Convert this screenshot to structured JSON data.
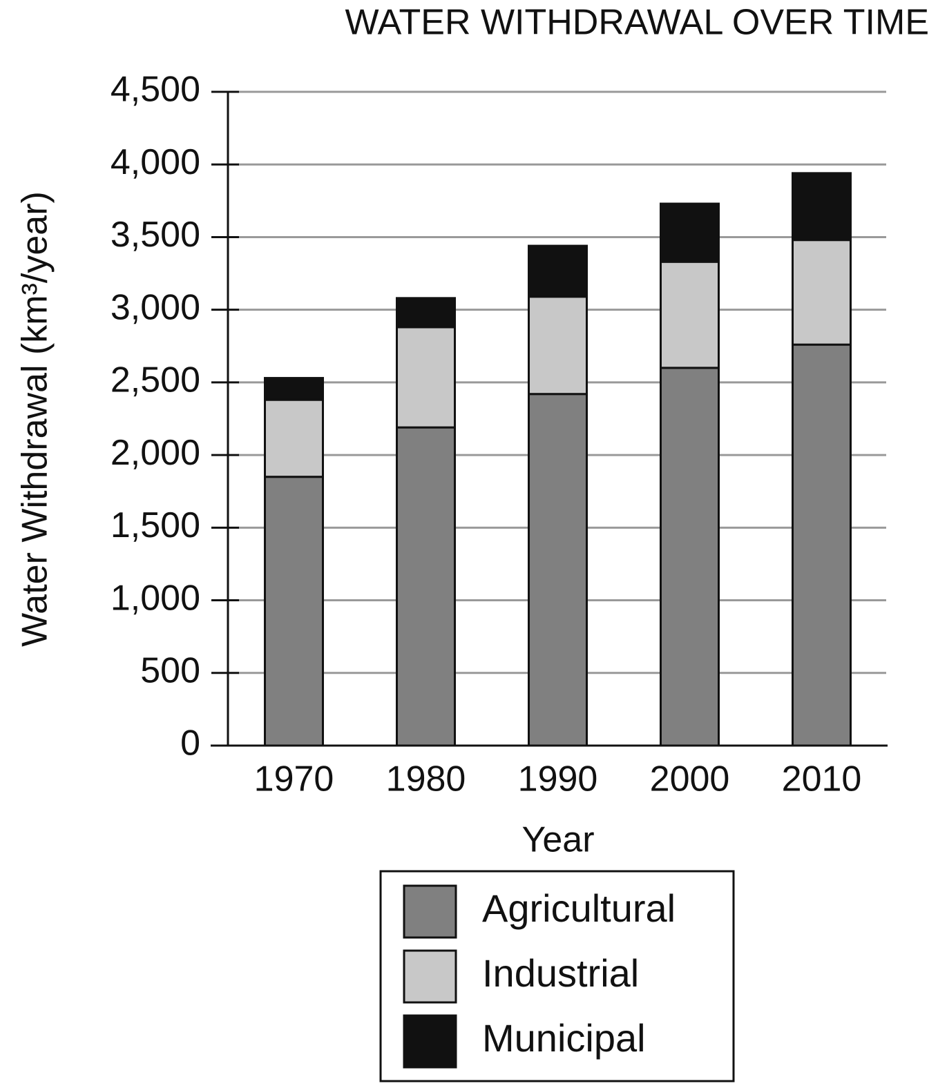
{
  "chart_data": {
    "type": "stacked_bar",
    "title": "WATER WITHDRAWAL OVER TIME",
    "x_label": "Year",
    "y_label": "Water Withdrawal (km³/year)",
    "categories": [
      "1970",
      "1980",
      "1990",
      "2000",
      "2010"
    ],
    "series": [
      {
        "name": "Agricultural",
        "color": "#808080",
        "values": [
          1850,
          2190,
          2420,
          2600,
          2760
        ]
      },
      {
        "name": "Industrial",
        "color": "#c8c8c8",
        "values": [
          530,
          690,
          670,
          730,
          720
        ]
      },
      {
        "name": "Municipal",
        "color": "#111111",
        "values": [
          150,
          200,
          350,
          400,
          460
        ]
      }
    ],
    "ylim": [
      0,
      4500
    ],
    "yticks": [
      0,
      500,
      {
        "value": 1000,
        "label": "1,000"
      },
      {
        "value": 1500,
        "label": "1,500"
      },
      {
        "value": 2000,
        "label": "2,000"
      },
      {
        "value": 2500,
        "label": "2,500"
      },
      {
        "value": 3000,
        "label": "3,000"
      },
      {
        "value": 3500,
        "label": "3,500"
      },
      {
        "value": 4000,
        "label": "4,000"
      },
      {
        "value": 4500,
        "label": "4,500"
      }
    ],
    "grid": true,
    "legend": "bottom"
  }
}
